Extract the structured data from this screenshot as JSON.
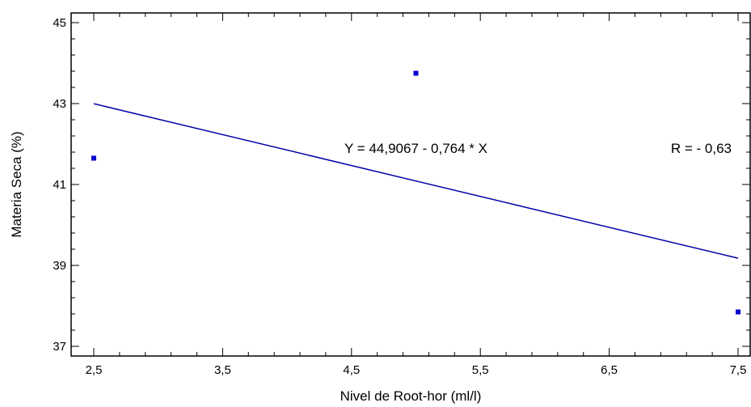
{
  "chart_data": {
    "type": "scatter",
    "xlabel": "Nivel de Root-hor (ml/l)",
    "ylabel": "Materia Seca (%)",
    "xlim": [
      2.5,
      7.5
    ],
    "ylim": [
      37,
      45
    ],
    "x_ticks": [
      2.5,
      3.5,
      4.5,
      5.5,
      6.5,
      7.5
    ],
    "x_tick_labels": [
      "2,5",
      "3,5",
      "4,5",
      "5,5",
      "6,5",
      "7,5"
    ],
    "y_ticks": [
      37,
      39,
      41,
      43,
      45
    ],
    "y_tick_labels": [
      "37",
      "39",
      "41",
      "43",
      "45"
    ],
    "grid": false,
    "series": [
      {
        "x": [
          2.5,
          5.0,
          7.5
        ],
        "y": [
          41.65,
          43.75,
          37.85
        ],
        "color": "#0000cc"
      }
    ],
    "regression_line": {
      "intercept": 44.9067,
      "slope": -0.764,
      "x_range": [
        2.5,
        7.5
      ],
      "color": "#0000aa"
    },
    "annotations": [
      {
        "text": "Y = 44,9067 - 0,764 * X",
        "x": 5.0,
        "y": 41.9
      },
      {
        "text": "R = - 0,63",
        "x": 7.5,
        "y": 41.9
      }
    ]
  }
}
